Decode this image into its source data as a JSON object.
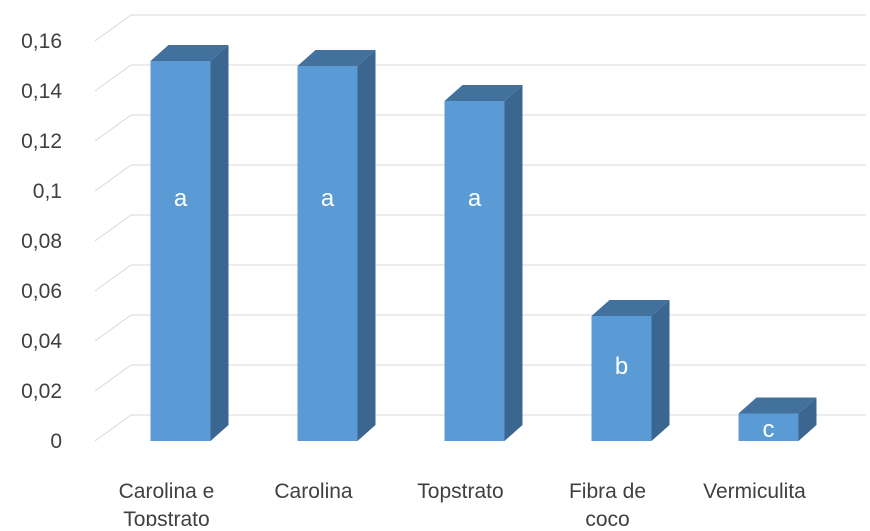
{
  "chart_data": {
    "type": "bar",
    "three_d": true,
    "categories": [
      [
        "Carolina e",
        "Topstrato"
      ],
      [
        "Carolina"
      ],
      [
        "Topstrato"
      ],
      [
        "Fibra de",
        "coco"
      ],
      [
        "Vermiculita"
      ]
    ],
    "values": [
      0.152,
      0.15,
      0.136,
      0.05,
      0.011
    ],
    "bar_labels": [
      "a",
      "a",
      "a",
      "b",
      "c"
    ],
    "y_ticks": [
      "0",
      "0,02",
      "0,04",
      "0,06",
      "0,08",
      "0,1",
      "0,12",
      "0,14",
      "0,16"
    ],
    "ylim": [
      0,
      0.16
    ],
    "grid": true,
    "legend": false,
    "colors": {
      "bar_front": "#5b9bd5",
      "bar_side": "#3a6690",
      "bar_top": "#41719c",
      "grid": "#d9d9d9",
      "text": "#404040",
      "bar_label": "#ffffff"
    }
  }
}
